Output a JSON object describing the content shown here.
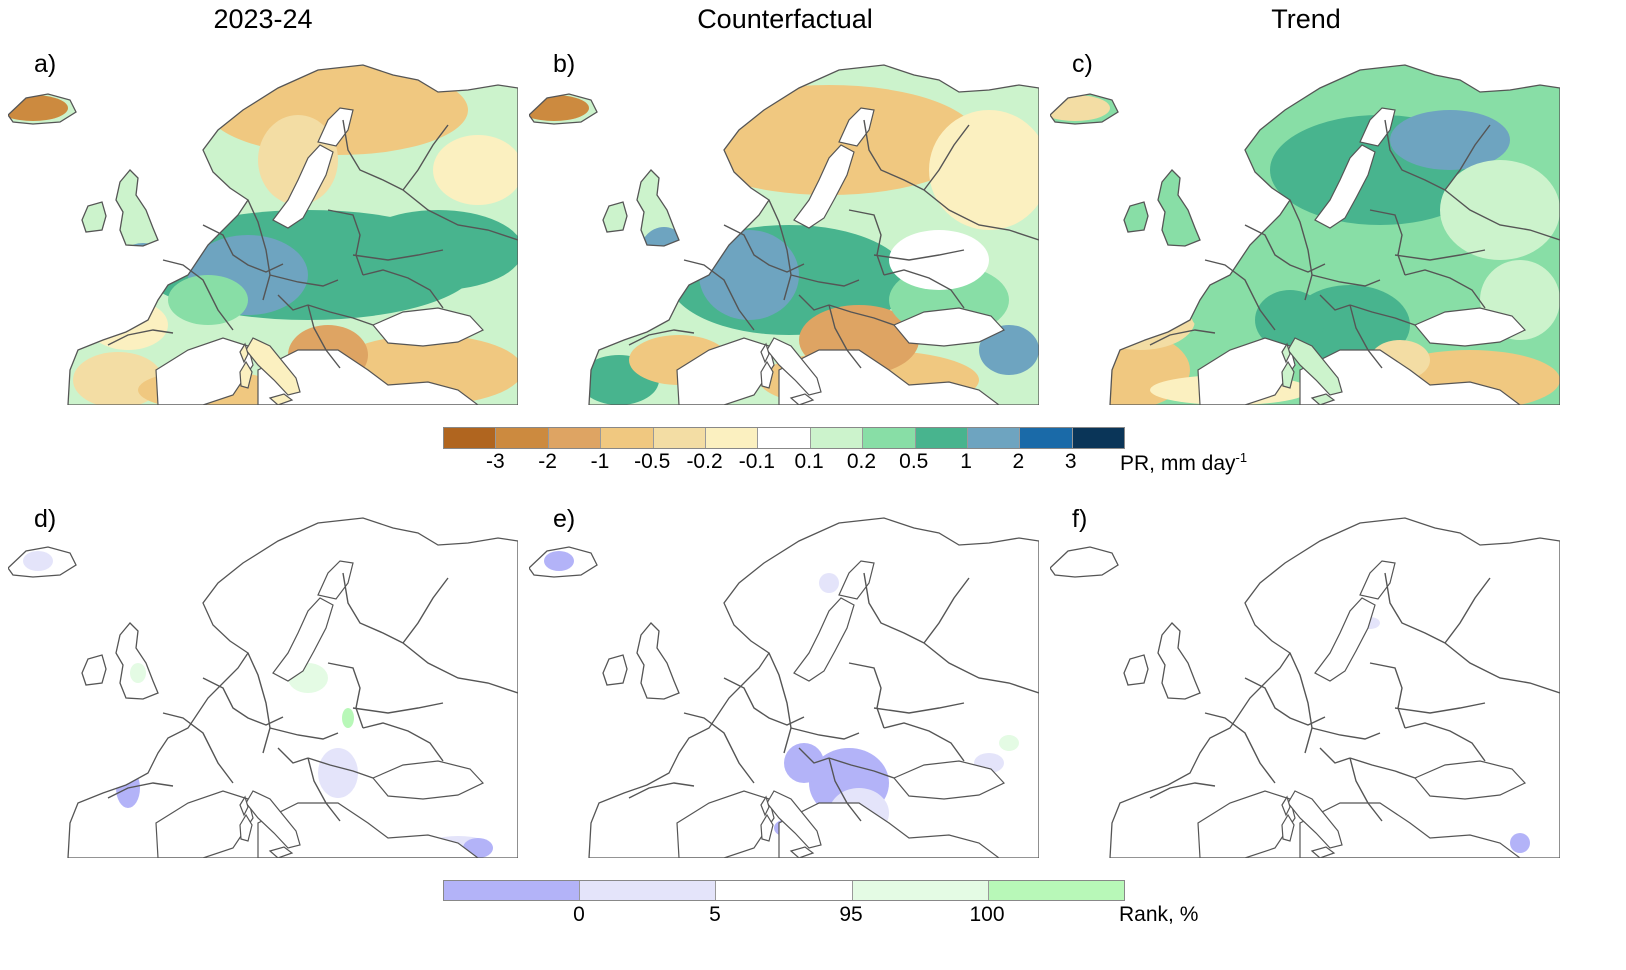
{
  "columns": [
    "2023-24",
    "Counterfactual",
    "Trend"
  ],
  "panel_labels": [
    "a)",
    "b)",
    "c)",
    "d)",
    "e)",
    "f)"
  ],
  "pr_colorbar": {
    "colors": [
      "#b0651f",
      "#cc8a3f",
      "#dea463",
      "#f0c880",
      "#f3dda4",
      "#fbf0c0",
      "#ffffff",
      "#ccf3cc",
      "#88dea6",
      "#48b48e",
      "#6ea4c0",
      "#1a6aa8",
      "#0a3558"
    ],
    "ticks": [
      "-3",
      "-2",
      "-1",
      "-0.5",
      "-0.2",
      "-0.1",
      "0.1",
      "0.2",
      "0.5",
      "1",
      "2",
      "3"
    ],
    "unit": "PR, mm day",
    "unit_sup": "-1"
  },
  "rank_colorbar": {
    "colors": [
      "#b3b3f8",
      "#e4e4fa",
      "#ffffff",
      "#e4fbe4",
      "#b8f8b8"
    ],
    "ticks": [
      "0",
      "5",
      "95",
      "100"
    ],
    "unit": "Rank, %"
  },
  "colors": {
    "coast": "#555555",
    "border": "#555555"
  }
}
